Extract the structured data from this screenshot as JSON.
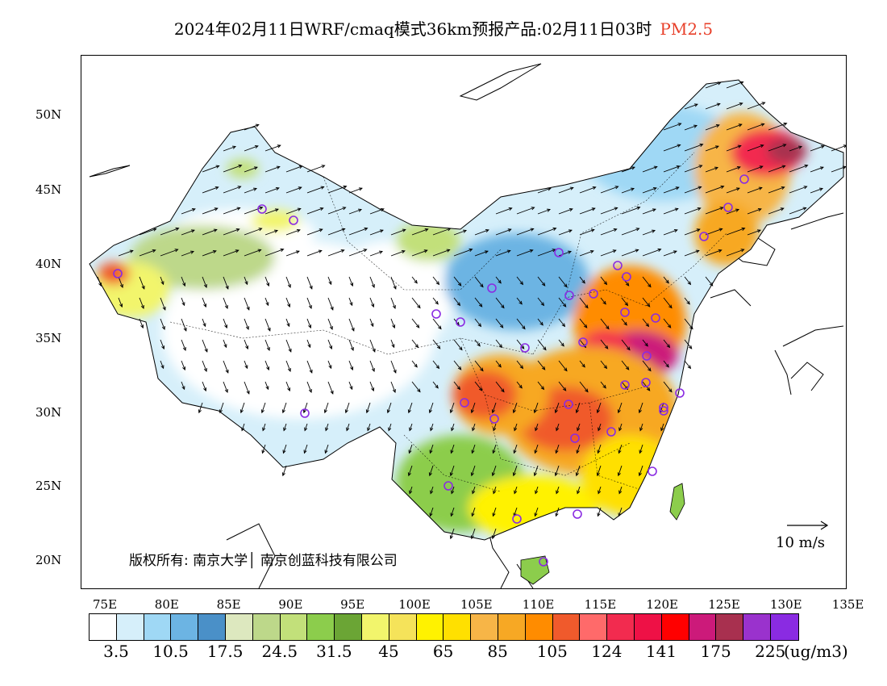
{
  "title": {
    "main": "2024年02月11日WRF/cmaq模式36km预报产品:02月11日03时",
    "variable": "PM2.5",
    "variable_color": "#e8402a"
  },
  "axes": {
    "lat_labels": [
      "50N",
      "45N",
      "40N",
      "35N",
      "30N",
      "25N",
      "20N"
    ],
    "lon_labels": [
      "75E",
      "80E",
      "85E",
      "90E",
      "95E",
      "100E",
      "105E",
      "110E",
      "115E",
      "120E",
      "125E",
      "130E",
      "135E"
    ]
  },
  "colorbar": {
    "colors": [
      "#ffffff",
      "#d6effa",
      "#9fd8f5",
      "#6cb4e3",
      "#4a90c8",
      "#dde8bf",
      "#bdd88a",
      "#c2e07a",
      "#8ccd4c",
      "#6ba535",
      "#f2f56c",
      "#f5e35a",
      "#fff200",
      "#ffe000",
      "#f7b547",
      "#f7a824",
      "#ff8c00",
      "#f05a2c",
      "#ff6a6a",
      "#f22b4f",
      "#ee1146",
      "#ff0000",
      "#cc1a7a",
      "#a8304f",
      "#9a32cd",
      "#8a2be2"
    ],
    "labels": [
      "3.5",
      "10.5",
      "17.5",
      "24.5",
      "31.5",
      "45",
      "65",
      "85",
      "105",
      "124",
      "141",
      "175",
      "225"
    ],
    "units": "(ug/m3)"
  },
  "wind_reference": "10 m/s",
  "copyright": "版权所有: 南京大学│ 南京创蓝科技有限公司"
}
